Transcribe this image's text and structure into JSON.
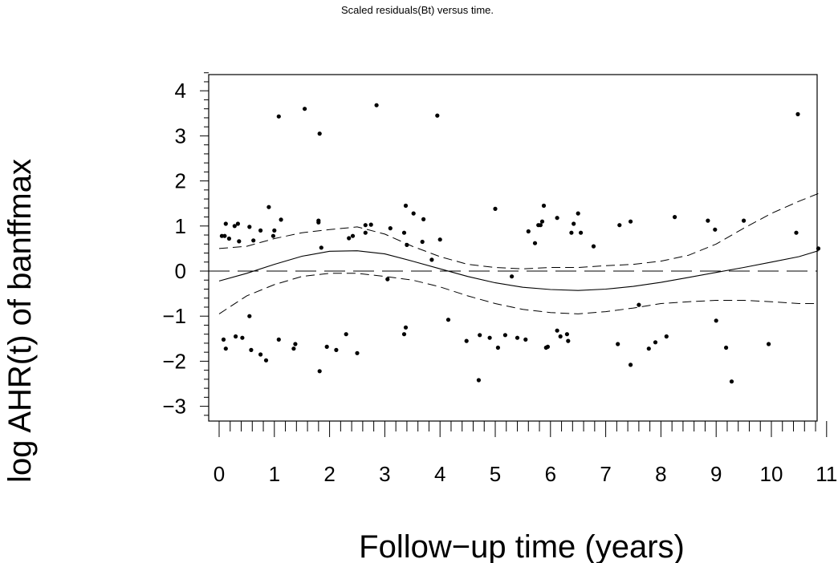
{
  "chart_data": {
    "type": "scatter",
    "title": "Scaled residuals(Bt) versus time.",
    "xlabel": "Follow−up time (years)",
    "ylabel": "log AHR(t) of banffmax",
    "xlim": [
      0,
      11
    ],
    "ylim": [
      -3.35,
      4.45
    ],
    "x_ticks": [
      "0",
      "1",
      "2",
      "3",
      "4",
      "5",
      "6",
      "7",
      "8",
      "9",
      "10",
      "11"
    ],
    "y_ticks": [
      "4",
      "3",
      "2",
      "1",
      "0",
      "−1",
      "−2",
      "−3"
    ],
    "reference_line": 0,
    "points": [
      [
        0.05,
        0.78
      ],
      [
        0.1,
        0.78
      ],
      [
        0.12,
        1.05
      ],
      [
        0.18,
        0.72
      ],
      [
        0.28,
        1.0
      ],
      [
        0.34,
        1.05
      ],
      [
        0.36,
        0.66
      ],
      [
        0.55,
        0.98
      ],
      [
        0.62,
        0.68
      ],
      [
        0.75,
        0.9
      ],
      [
        0.9,
        1.42
      ],
      [
        0.98,
        0.78
      ],
      [
        1.0,
        0.9
      ],
      [
        1.12,
        1.14
      ],
      [
        1.08,
        3.43
      ],
      [
        1.55,
        3.6
      ],
      [
        1.8,
        1.08
      ],
      [
        1.8,
        1.12
      ],
      [
        1.82,
        3.05
      ],
      [
        1.85,
        0.52
      ],
      [
        2.35,
        0.73
      ],
      [
        2.42,
        0.78
      ],
      [
        2.65,
        1.02
      ],
      [
        2.65,
        0.85
      ],
      [
        2.75,
        1.03
      ],
      [
        2.85,
        3.68
      ],
      [
        3.05,
        -0.18
      ],
      [
        3.1,
        0.95
      ],
      [
        3.35,
        0.85
      ],
      [
        3.38,
        1.45
      ],
      [
        3.4,
        0.58
      ],
      [
        3.52,
        1.28
      ],
      [
        3.68,
        0.65
      ],
      [
        3.7,
        1.15
      ],
      [
        3.85,
        0.25
      ],
      [
        3.95,
        3.45
      ],
      [
        4.0,
        0.7
      ],
      [
        0.08,
        -1.52
      ],
      [
        0.12,
        -1.72
      ],
      [
        0.3,
        -1.45
      ],
      [
        0.42,
        -1.48
      ],
      [
        0.55,
        -1.0
      ],
      [
        0.58,
        -1.75
      ],
      [
        0.75,
        -1.85
      ],
      [
        0.85,
        -1.98
      ],
      [
        1.08,
        -1.52
      ],
      [
        1.35,
        -1.72
      ],
      [
        1.38,
        -1.62
      ],
      [
        1.82,
        -2.22
      ],
      [
        1.95,
        -1.68
      ],
      [
        2.12,
        -1.75
      ],
      [
        2.3,
        -1.4
      ],
      [
        2.5,
        -1.82
      ],
      [
        3.35,
        -1.4
      ],
      [
        3.38,
        -1.25
      ],
      [
        4.15,
        -1.08
      ],
      [
        4.48,
        -1.55
      ],
      [
        4.7,
        -2.42
      ],
      [
        4.72,
        -1.42
      ],
      [
        4.9,
        -1.48
      ],
      [
        5.05,
        -1.7
      ],
      [
        5.18,
        -1.42
      ],
      [
        5.4,
        -1.48
      ],
      [
        5.55,
        -1.52
      ],
      [
        5.92,
        -1.7
      ],
      [
        5.95,
        -1.68
      ],
      [
        6.12,
        -1.32
      ],
      [
        6.18,
        -1.45
      ],
      [
        6.3,
        -1.4
      ],
      [
        6.32,
        -1.55
      ],
      [
        7.22,
        -1.62
      ],
      [
        7.45,
        -2.08
      ],
      [
        7.6,
        -0.75
      ],
      [
        7.78,
        -1.72
      ],
      [
        7.9,
        -1.58
      ],
      [
        8.1,
        -1.45
      ],
      [
        9.0,
        -1.1
      ],
      [
        9.18,
        -1.7
      ],
      [
        9.28,
        -2.45
      ],
      [
        9.95,
        -1.62
      ],
      [
        5.3,
        -0.12
      ],
      [
        5.0,
        1.38
      ],
      [
        5.6,
        0.88
      ],
      [
        5.72,
        0.62
      ],
      [
        5.78,
        1.02
      ],
      [
        5.82,
        1.02
      ],
      [
        5.85,
        1.1
      ],
      [
        5.88,
        1.45
      ],
      [
        6.12,
        1.18
      ],
      [
        6.38,
        0.85
      ],
      [
        6.42,
        1.05
      ],
      [
        6.5,
        1.28
      ],
      [
        6.55,
        0.85
      ],
      [
        6.78,
        0.55
      ],
      [
        7.25,
        1.02
      ],
      [
        7.45,
        1.1
      ],
      [
        8.25,
        1.2
      ],
      [
        8.85,
        1.12
      ],
      [
        8.98,
        0.92
      ],
      [
        9.5,
        1.12
      ],
      [
        10.45,
        0.85
      ],
      [
        10.48,
        3.48
      ],
      [
        10.85,
        0.5
      ]
    ],
    "fit_line": [
      [
        0,
        -0.22
      ],
      [
        0.5,
        -0.05
      ],
      [
        1,
        0.15
      ],
      [
        1.5,
        0.33
      ],
      [
        2,
        0.44
      ],
      [
        2.5,
        0.45
      ],
      [
        3,
        0.38
      ],
      [
        3.5,
        0.22
      ],
      [
        4,
        0.05
      ],
      [
        4.5,
        -0.12
      ],
      [
        5,
        -0.26
      ],
      [
        5.5,
        -0.36
      ],
      [
        6,
        -0.41
      ],
      [
        6.5,
        -0.43
      ],
      [
        7,
        -0.4
      ],
      [
        7.5,
        -0.34
      ],
      [
        8,
        -0.25
      ],
      [
        8.5,
        -0.14
      ],
      [
        9,
        -0.03
      ],
      [
        9.5,
        0.08
      ],
      [
        10,
        0.2
      ],
      [
        10.5,
        0.32
      ],
      [
        10.85,
        0.45
      ]
    ],
    "upper_band": [
      [
        0,
        0.5
      ],
      [
        0.5,
        0.55
      ],
      [
        1,
        0.72
      ],
      [
        1.5,
        0.85
      ],
      [
        2,
        0.92
      ],
      [
        2.5,
        0.98
      ],
      [
        3,
        0.82
      ],
      [
        3.5,
        0.55
      ],
      [
        4,
        0.32
      ],
      [
        4.5,
        0.15
      ],
      [
        5,
        0.08
      ],
      [
        5.5,
        0.05
      ],
      [
        6,
        0.08
      ],
      [
        6.5,
        0.08
      ],
      [
        7,
        0.12
      ],
      [
        7.5,
        0.15
      ],
      [
        8,
        0.22
      ],
      [
        8.5,
        0.35
      ],
      [
        9,
        0.6
      ],
      [
        9.5,
        0.95
      ],
      [
        10,
        1.28
      ],
      [
        10.5,
        1.55
      ],
      [
        10.85,
        1.72
      ]
    ],
    "lower_band": [
      [
        0,
        -0.95
      ],
      [
        0.5,
        -0.55
      ],
      [
        1,
        -0.3
      ],
      [
        1.5,
        -0.12
      ],
      [
        2,
        -0.05
      ],
      [
        2.5,
        -0.05
      ],
      [
        3,
        -0.12
      ],
      [
        3.5,
        -0.2
      ],
      [
        4,
        -0.35
      ],
      [
        4.5,
        -0.55
      ],
      [
        5,
        -0.72
      ],
      [
        5.5,
        -0.85
      ],
      [
        6,
        -0.92
      ],
      [
        6.5,
        -0.95
      ],
      [
        7,
        -0.9
      ],
      [
        7.5,
        -0.82
      ],
      [
        8,
        -0.72
      ],
      [
        8.5,
        -0.68
      ],
      [
        9,
        -0.65
      ],
      [
        9.5,
        -0.65
      ],
      [
        10,
        -0.68
      ],
      [
        10.5,
        -0.72
      ],
      [
        10.85,
        -0.72
      ]
    ]
  }
}
